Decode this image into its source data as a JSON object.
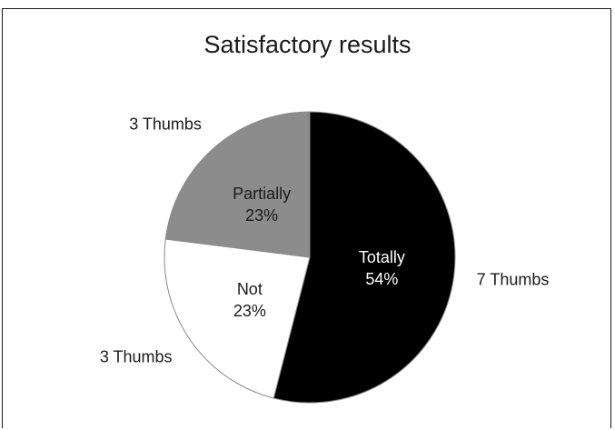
{
  "chart_data": {
    "type": "pie",
    "title": "Satisfactory results",
    "slices": [
      {
        "label": "Totally",
        "value": 54,
        "pct_label": "54%",
        "count_label": "7 Thumbs",
        "color": "#000000",
        "text_color": "#ffffff"
      },
      {
        "label": "Not",
        "value": 23,
        "pct_label": "23%",
        "count_label": "3 Thumbs",
        "color": "#ffffff",
        "text_color": "#1a1a1a"
      },
      {
        "label": "Partially",
        "value": 23,
        "pct_label": "23%",
        "count_label": "3 Thumbs",
        "color": "#8c8c8c",
        "text_color": "#1a1a1a"
      }
    ],
    "start_angle_deg": 0,
    "direction": "clockwise",
    "legend": "none"
  }
}
